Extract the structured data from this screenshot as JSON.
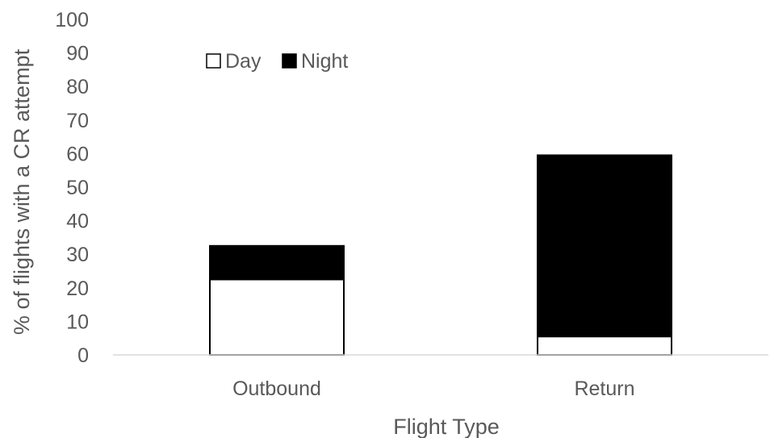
{
  "chart_data": {
    "type": "bar",
    "stacked": true,
    "categories": [
      "Outbound",
      "Return"
    ],
    "series": [
      {
        "name": "Day",
        "values": [
          22.5,
          5.5
        ],
        "color": "#ffffff"
      },
      {
        "name": "Night",
        "values": [
          10.0,
          54.0
        ],
        "color": "#000000"
      }
    ],
    "xlabel": "Flight Type",
    "ylabel": "% of flights with a CR attempt",
    "ylim": [
      0,
      100
    ],
    "yticks": [
      "0",
      "10",
      "20",
      "30",
      "40",
      "50",
      "60",
      "70",
      "80",
      "90",
      "100"
    ],
    "grid": false,
    "legend_position": "top-left"
  }
}
